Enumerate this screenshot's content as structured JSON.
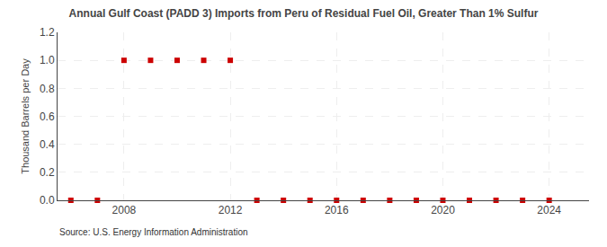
{
  "chart_data": {
    "type": "scatter",
    "title": "Annual Gulf Coast (PADD 3) Imports from Peru of Residual Fuel Oil, Greater Than 1% Sulfur",
    "y_label": "Thousand Barrels per Day",
    "annotations": [
      "Source: U.S. Energy Information Administration"
    ],
    "x": [
      2006,
      2007,
      2008,
      2009,
      2010,
      2011,
      2012,
      2013,
      2014,
      2015,
      2016,
      2017,
      2018,
      2019,
      2020,
      2021,
      2022,
      2023,
      2024
    ],
    "values": [
      0.0,
      0.0,
      1.0,
      1.0,
      1.0,
      1.0,
      1.0,
      0.0,
      0.0,
      0.0,
      0.0,
      0.0,
      0.0,
      0.0,
      0.0,
      0.0,
      0.0,
      0.0,
      0.0
    ],
    "color": "#cc0000",
    "marker": "square",
    "xlim": [
      2005.5,
      2025.5
    ],
    "xticks": [
      2008,
      2012,
      2016,
      2020,
      2024
    ],
    "ylim": [
      0,
      1.2
    ],
    "yticks": [
      {
        "value": 0,
        "label": "0.0"
      },
      0.2,
      0.4,
      0.6,
      0.8,
      {
        "value": 1,
        "label": "1.0"
      },
      1.2
    ],
    "grid": true
  }
}
